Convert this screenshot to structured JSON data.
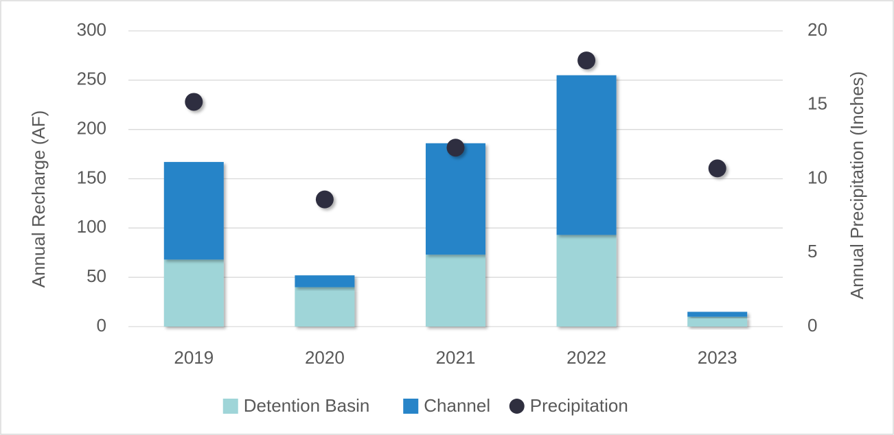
{
  "chart_data": {
    "type": "bar",
    "stacked": true,
    "categories": [
      "2019",
      "2020",
      "2021",
      "2022",
      "2023"
    ],
    "ylabel": "Annual Recharge (AF)",
    "y2label": "Annual Precipitation (Inches)",
    "ylim": [
      0,
      300
    ],
    "yticks": [
      0,
      50,
      100,
      150,
      200,
      250,
      300
    ],
    "y2lim": [
      0,
      20
    ],
    "y2ticks": [
      0,
      5,
      10,
      15,
      20
    ],
    "grid": true,
    "legend": "bottom",
    "series": [
      {
        "name": "Detention Basin",
        "color": "#9fd5d8",
        "values": [
          68,
          40,
          73,
          93,
          10
        ]
      },
      {
        "name": "Channel",
        "color": "#2784c8",
        "values": [
          99,
          12,
          113,
          162,
          5
        ]
      },
      {
        "name": "Precipitation",
        "color": "#2f2f3f",
        "axis": "y2",
        "values": [
          15.2,
          8.6,
          12.1,
          18.0,
          10.7
        ]
      }
    ]
  }
}
